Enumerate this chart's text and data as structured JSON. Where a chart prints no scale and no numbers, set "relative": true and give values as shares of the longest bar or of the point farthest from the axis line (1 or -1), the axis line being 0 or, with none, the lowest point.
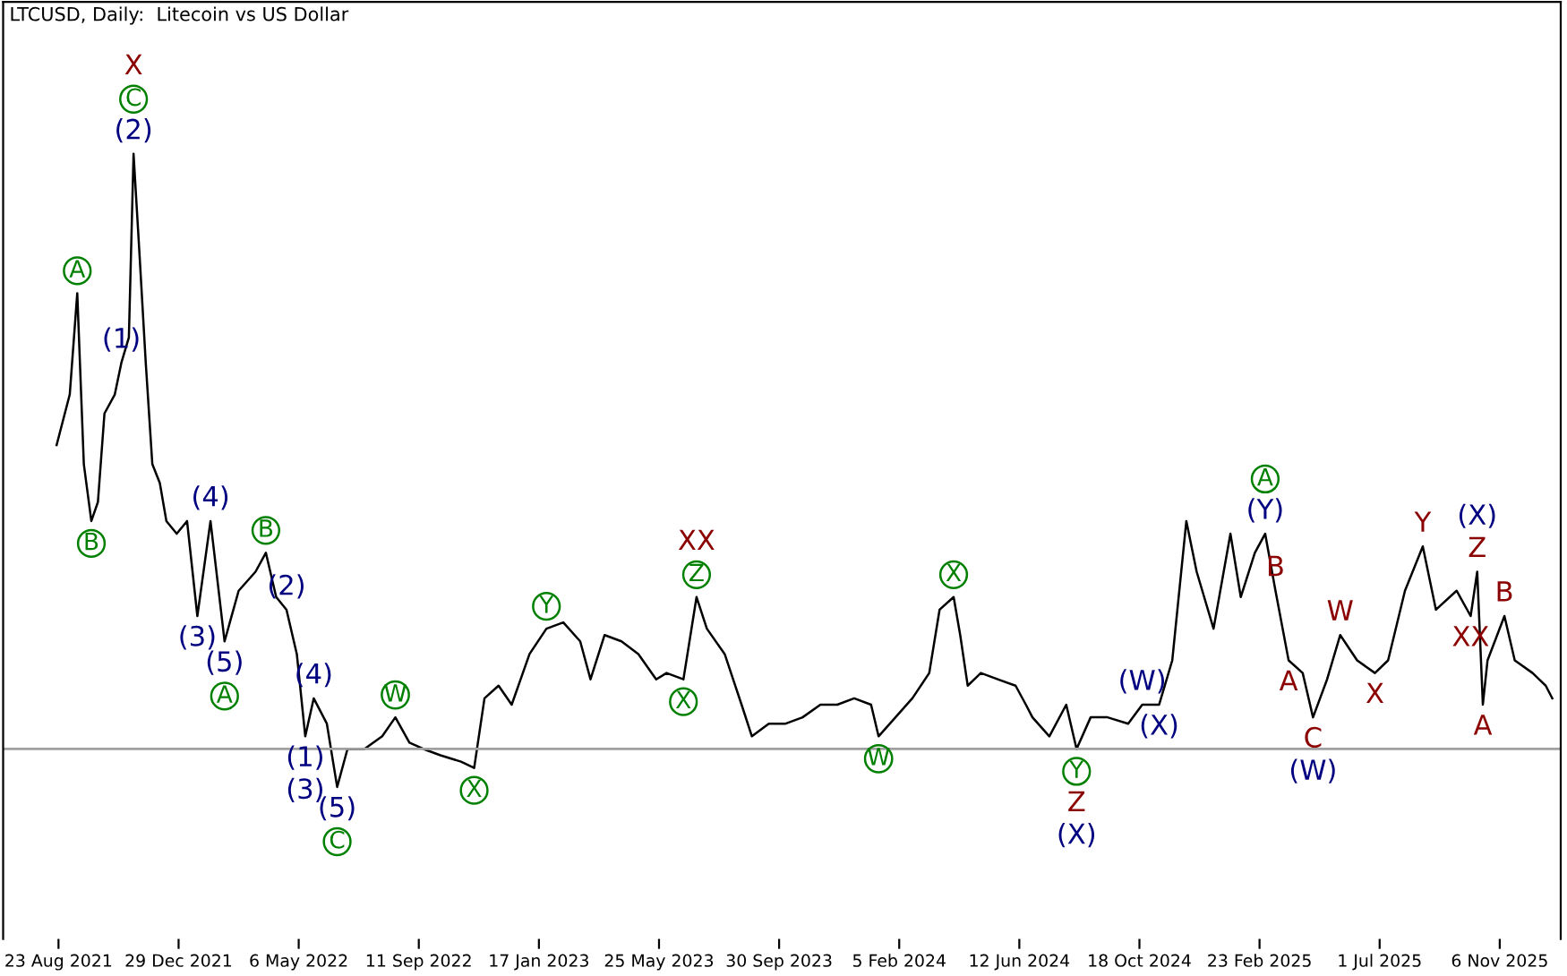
{
  "chart_data": {
    "type": "line",
    "title": "LTCUSD, Daily:  Litecoin vs US Dollar",
    "relative": true,
    "tick_labels": "x",
    "grid": false,
    "legend": false,
    "marker": "none",
    "line_style": "solid",
    "x": [
      "2021-08-21",
      "2021-09-04",
      "2021-09-12",
      "2021-09-19",
      "2021-09-27",
      "2021-10-04",
      "2021-10-11",
      "2021-10-22",
      "2021-10-29",
      "2021-11-06",
      "2021-11-11",
      "2021-11-17",
      "2021-11-24",
      "2021-12-01",
      "2021-12-09",
      "2021-12-16",
      "2021-12-27",
      "2022-01-07",
      "2022-01-18",
      "2022-02-01",
      "2022-02-16",
      "2022-03-03",
      "2022-03-21",
      "2022-04-01",
      "2022-04-12",
      "2022-04-23",
      "2022-05-04",
      "2022-05-13",
      "2022-05-22",
      "2022-06-05",
      "2022-06-16",
      "2022-06-27",
      "2022-07-15",
      "2022-08-03",
      "2022-08-17",
      "2022-09-01",
      "2022-09-16",
      "2022-10-04",
      "2022-10-26",
      "2022-11-09",
      "2022-11-20",
      "2022-12-05",
      "2022-12-19",
      "2023-01-07",
      "2023-01-25",
      "2023-02-12",
      "2023-03-02",
      "2023-03-13",
      "2023-03-28",
      "2023-04-15",
      "2023-05-03",
      "2023-05-22",
      "2023-06-02",
      "2023-06-20",
      "2023-07-04",
      "2023-07-15",
      "2023-08-03",
      "2023-08-21",
      "2023-09-01",
      "2023-09-19",
      "2023-10-07",
      "2023-10-25",
      "2023-11-13",
      "2023-12-01",
      "2023-12-19",
      "2024-01-06",
      "2024-01-14",
      "2024-02-01",
      "2024-02-19",
      "2024-03-08",
      "2024-03-19",
      "2024-04-03",
      "2024-04-10",
      "2024-04-18",
      "2024-05-02",
      "2024-05-20",
      "2024-06-08",
      "2024-06-19",
      "2024-06-26",
      "2024-07-14",
      "2024-08-01",
      "2024-08-12",
      "2024-08-27",
      "2024-09-14",
      "2024-10-06",
      "2024-10-21",
      "2024-11-08",
      "2024-11-22",
      "2024-12-07",
      "2024-12-18",
      "2025-01-05",
      "2025-01-23",
      "2025-02-03",
      "2025-02-18",
      "2025-03-01",
      "2025-03-12",
      "2025-03-26",
      "2025-04-10",
      "2025-04-21",
      "2025-05-06",
      "2025-05-20",
      "2025-06-07",
      "2025-06-26",
      "2025-07-10",
      "2025-07-28",
      "2025-08-16",
      "2025-08-30",
      "2025-09-21",
      "2025-10-06",
      "2025-10-13",
      "2025-10-19",
      "2025-10-24",
      "2025-11-11",
      "2025-11-22",
      "2025-12-11",
      "2025-12-25",
      "2026-01-01"
    ],
    "series": [
      {
        "color": "#000000",
        "values": [
          0.54,
          0.62,
          0.78,
          0.51,
          0.42,
          0.45,
          0.59,
          0.62,
          0.67,
          0.71,
          1.0,
          0.85,
          0.67,
          0.51,
          0.48,
          0.42,
          0.4,
          0.42,
          0.27,
          0.42,
          0.23,
          0.31,
          0.34,
          0.37,
          0.3,
          0.28,
          0.21,
          0.08,
          0.14,
          0.1,
          0.0,
          0.06,
          0.06,
          0.08,
          0.11,
          0.07,
          0.06,
          0.05,
          0.04,
          0.03,
          0.14,
          0.16,
          0.13,
          0.21,
          0.25,
          0.26,
          0.23,
          0.17,
          0.24,
          0.23,
          0.21,
          0.17,
          0.18,
          0.17,
          0.3,
          0.25,
          0.21,
          0.13,
          0.08,
          0.1,
          0.1,
          0.11,
          0.13,
          0.13,
          0.14,
          0.13,
          0.08,
          0.11,
          0.14,
          0.18,
          0.28,
          0.3,
          0.24,
          0.16,
          0.18,
          0.17,
          0.16,
          0.13,
          0.11,
          0.08,
          0.13,
          0.06,
          0.11,
          0.11,
          0.1,
          0.13,
          0.13,
          0.2,
          0.42,
          0.34,
          0.25,
          0.4,
          0.3,
          0.37,
          0.4,
          0.31,
          0.2,
          0.18,
          0.11,
          0.17,
          0.24,
          0.2,
          0.18,
          0.2,
          0.31,
          0.38,
          0.28,
          0.31,
          0.27,
          0.34,
          0.13,
          0.2,
          0.27,
          0.2,
          0.18,
          0.16,
          0.14
        ]
      }
    ],
    "xlim": [
      "2021-06-25",
      "2026-01-10"
    ],
    "xticks": [
      {
        "value": "2021-08-23",
        "label": "23 Aug 2021"
      },
      {
        "value": "2021-12-29",
        "label": "29 Dec 2021"
      },
      {
        "value": "2022-05-06",
        "label": "6 May 2022"
      },
      {
        "value": "2022-09-11",
        "label": "11 Sep 2022"
      },
      {
        "value": "2023-01-17",
        "label": "17 Jan 2023"
      },
      {
        "value": "2023-05-25",
        "label": "25 May 2023"
      },
      {
        "value": "2023-09-30",
        "label": "30 Sep 2023"
      },
      {
        "value": "2024-02-05",
        "label": "5 Feb 2024"
      },
      {
        "value": "2024-06-12",
        "label": "12 Jun 2024"
      },
      {
        "value": "2024-10-18",
        "label": "18 Oct 2024"
      },
      {
        "value": "2025-02-23",
        "label": "23 Feb 2025"
      },
      {
        "value": "2025-07-01",
        "label": "1 Jul 2025"
      },
      {
        "value": "2025-11-06",
        "label": "6 Nov 2025"
      }
    ],
    "ref_lines": [
      {
        "axis": "y",
        "value": 0.06,
        "color": "#a0a0a0"
      }
    ],
    "annotations": [
      {
        "text": "X",
        "x": "2021-11-11",
        "y": 1.0
      },
      {
        "text": "C",
        "x": "2021-11-11",
        "y": 1.0
      },
      {
        "text": "(2)",
        "x": "2021-11-11",
        "y": 1.0
      },
      {
        "text": "A",
        "x": "2021-09-12",
        "y": 0.78
      },
      {
        "text": "(1)",
        "x": "2021-10-29",
        "y": 0.67
      },
      {
        "text": "B",
        "x": "2021-09-27",
        "y": 0.42
      },
      {
        "text": "(4)",
        "x": "2022-02-01",
        "y": 0.42
      },
      {
        "text": "B",
        "x": "2022-04-01",
        "y": 0.37
      },
      {
        "text": "(2)",
        "x": "2022-04-23",
        "y": 0.28
      },
      {
        "text": "(3)",
        "x": "2022-01-18",
        "y": 0.27
      },
      {
        "text": "(5)",
        "x": "2022-02-16",
        "y": 0.23
      },
      {
        "text": "A",
        "x": "2022-02-16",
        "y": 0.23
      },
      {
        "text": "(1)",
        "x": "2022-05-13",
        "y": 0.08
      },
      {
        "text": "(3)",
        "x": "2022-05-13",
        "y": 0.08
      },
      {
        "text": "(4)",
        "x": "2022-05-22",
        "y": 0.14
      },
      {
        "text": "W",
        "x": "2022-08-17",
        "y": 0.11
      },
      {
        "text": "(5)",
        "x": "2022-06-16",
        "y": 0.0
      },
      {
        "text": "C",
        "x": "2022-06-16",
        "y": 0.0
      },
      {
        "text": "X",
        "x": "2022-11-09",
        "y": 0.03
      },
      {
        "text": "Y",
        "x": "2023-01-25",
        "y": 0.25
      },
      {
        "text": "XX",
        "x": "2023-07-04",
        "y": 0.3
      },
      {
        "text": "Z",
        "x": "2023-07-04",
        "y": 0.3
      },
      {
        "text": "X",
        "x": "2023-06-20",
        "y": 0.17
      },
      {
        "text": "W",
        "x": "2024-01-14",
        "y": 0.08
      },
      {
        "text": "X",
        "x": "2024-04-03",
        "y": 0.3
      },
      {
        "text": "Y",
        "x": "2024-08-12",
        "y": 0.06
      },
      {
        "text": "Z",
        "x": "2024-08-12",
        "y": 0.06
      },
      {
        "text": "(X)",
        "x": "2024-08-12",
        "y": 0.06
      },
      {
        "text": "(W)",
        "x": "2024-10-21",
        "y": 0.13
      },
      {
        "text": "(X)",
        "x": "2024-11-08",
        "y": 0.13
      },
      {
        "text": "A",
        "x": "2025-03-01",
        "y": 0.4
      },
      {
        "text": "(Y)",
        "x": "2025-03-01",
        "y": 0.4
      },
      {
        "text": "B",
        "x": "2025-03-12",
        "y": 0.31
      },
      {
        "text": "A",
        "x": "2025-03-26",
        "y": 0.2
      },
      {
        "text": "C",
        "x": "2025-04-21",
        "y": 0.11
      },
      {
        "text": "(W)",
        "x": "2025-04-21",
        "y": 0.11
      },
      {
        "text": "W",
        "x": "2025-05-20",
        "y": 0.24
      },
      {
        "text": "X",
        "x": "2025-06-26",
        "y": 0.18
      },
      {
        "text": "Y",
        "x": "2025-08-16",
        "y": 0.38
      },
      {
        "text": "(X)",
        "x": "2025-10-13",
        "y": 0.34
      },
      {
        "text": "Z",
        "x": "2025-10-13",
        "y": 0.34
      },
      {
        "text": "B",
        "x": "2025-11-11",
        "y": 0.27
      },
      {
        "text": "XX",
        "x": "2025-10-06",
        "y": 0.27
      },
      {
        "text": "A",
        "x": "2025-10-19",
        "y": 0.13
      }
    ]
  }
}
